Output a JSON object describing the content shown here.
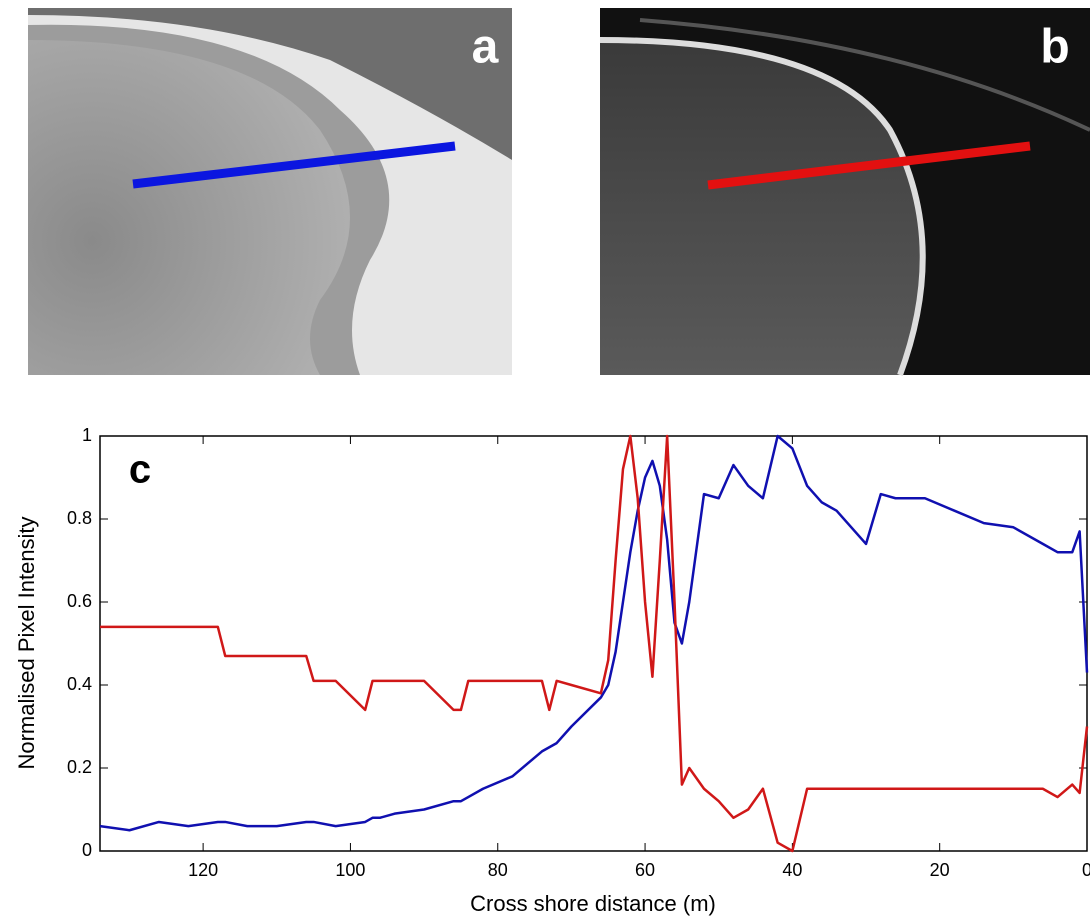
{
  "panels": {
    "a": "a",
    "b": "b"
  },
  "chart_data": {
    "type": "line",
    "panel_label": "c",
    "xlabel": "Cross shore distance (m)",
    "ylabel": "Normalised Pixel Intensity",
    "x": [
      134,
      130,
      126,
      122,
      118,
      117,
      114,
      110,
      106,
      105,
      102,
      98,
      97,
      96,
      94,
      90,
      86,
      85,
      84,
      82,
      78,
      74,
      73,
      72,
      70,
      66,
      65,
      64,
      63,
      62,
      61,
      60,
      59,
      58,
      57,
      56,
      55,
      54,
      52,
      50,
      48,
      46,
      44,
      42,
      40,
      38,
      36,
      34,
      32,
      30,
      28,
      26,
      22,
      18,
      14,
      10,
      6,
      4,
      2,
      1,
      0
    ],
    "series": [
      {
        "color": "#1010b0",
        "values": [
          0.06,
          0.05,
          0.07,
          0.06,
          0.07,
          0.07,
          0.06,
          0.06,
          0.07,
          0.07,
          0.06,
          0.07,
          0.08,
          0.08,
          0.09,
          0.1,
          0.12,
          0.12,
          0.13,
          0.15,
          0.18,
          0.24,
          0.25,
          0.26,
          0.3,
          0.37,
          0.4,
          0.48,
          0.6,
          0.72,
          0.82,
          0.9,
          0.94,
          0.88,
          0.75,
          0.55,
          0.5,
          0.6,
          0.86,
          0.85,
          0.93,
          0.88,
          0.85,
          1,
          0.97,
          0.88,
          0.84,
          0.82,
          0.78,
          0.74,
          0.86,
          0.85,
          0.85,
          0.82,
          0.79,
          0.78,
          0.74,
          0.72,
          0.72,
          0.77,
          0.43
        ]
      },
      {
        "color": "#d01818",
        "values": [
          0.54,
          0.54,
          0.54,
          0.54,
          0.54,
          0.47,
          0.47,
          0.47,
          0.47,
          0.41,
          0.41,
          0.34,
          0.41,
          0.41,
          0.41,
          0.41,
          0.34,
          0.34,
          0.41,
          0.41,
          0.41,
          0.41,
          0.34,
          0.41,
          0.4,
          0.38,
          0.46,
          0.7,
          0.92,
          1,
          0.85,
          0.6,
          0.42,
          0.7,
          1,
          0.6,
          0.16,
          0.2,
          0.15,
          0.12,
          0.08,
          0.1,
          0.15,
          0.02,
          0,
          0.15,
          0.15,
          0.15,
          0.15,
          0.15,
          0.15,
          0.15,
          0.15,
          0.15,
          0.15,
          0.15,
          0.15,
          0.13,
          0.16,
          0.14,
          0.3
        ]
      }
    ],
    "xlim": [
      134,
      0
    ],
    "ylim": [
      0,
      1
    ],
    "xticks": [
      120,
      100,
      80,
      60,
      40,
      20,
      0
    ],
    "yticks": [
      0,
      0.2,
      0.4,
      0.6,
      0.8,
      1
    ]
  }
}
